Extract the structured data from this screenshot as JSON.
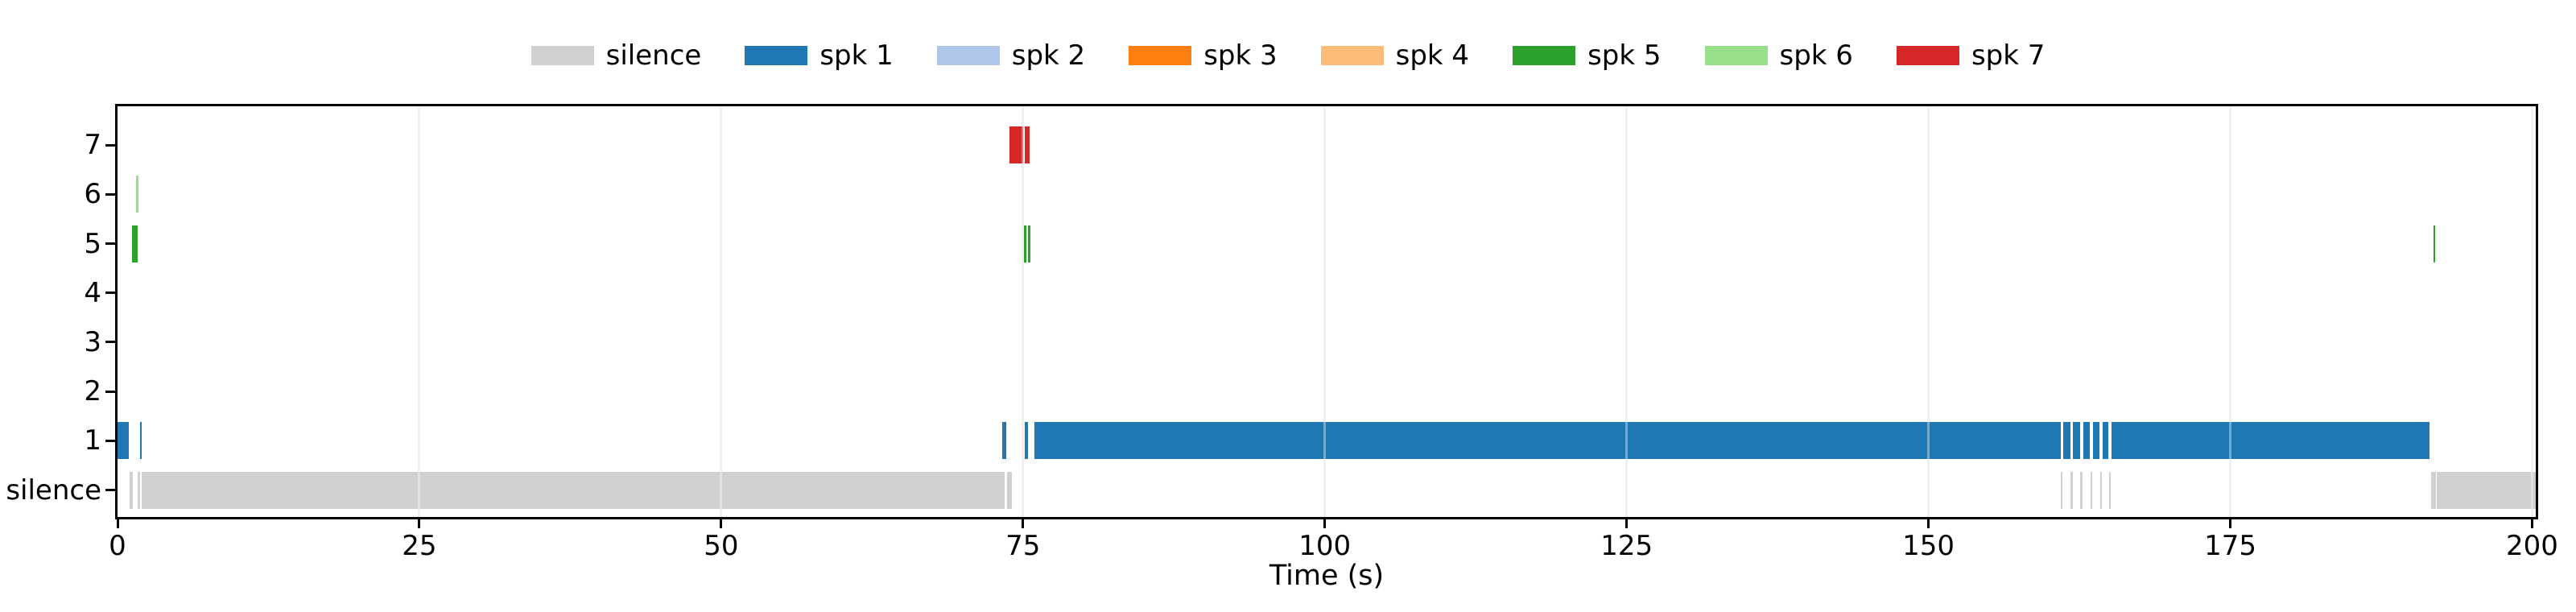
{
  "legend": {
    "items": [
      {
        "label": "silence",
        "color": "#d0d0d0"
      },
      {
        "label": "spk 1",
        "color": "#1f77b4"
      },
      {
        "label": "spk 2",
        "color": "#aec7e8"
      },
      {
        "label": "spk 3",
        "color": "#ff7f0e"
      },
      {
        "label": "spk 4",
        "color": "#ffbb78"
      },
      {
        "label": "spk 5",
        "color": "#2ca02c"
      },
      {
        "label": "spk 6",
        "color": "#98df8a"
      },
      {
        "label": "spk 7",
        "color": "#d62728"
      }
    ]
  },
  "chart_data": {
    "type": "timeline",
    "title": "",
    "xlabel": "Time (s)",
    "ylabel": "",
    "xlim": [
      0,
      200.3
    ],
    "xticks": [
      0,
      25,
      50,
      75,
      100,
      125,
      150,
      175,
      200
    ],
    "grid": {
      "axis": "x",
      "note": "faint light-gray vertical gridline at each x tick, appears as lighter stripe where it crosses bars"
    },
    "ylabels_bottom_to_top": [
      "silence",
      "1",
      "2",
      "3",
      "4",
      "5",
      "6",
      "7"
    ],
    "legend_position": "top center, horizontal row, no frame",
    "rows": [
      {
        "label": "silence",
        "color": "#d0d0d0",
        "segments": [
          [
            1.02,
            1.28
          ],
          [
            1.67,
            1.9
          ],
          [
            2.03,
            73.45
          ],
          [
            73.67,
            74.1
          ],
          [
            160.93,
            161.11
          ],
          [
            161.76,
            161.94
          ],
          [
            162.58,
            162.76
          ],
          [
            163.4,
            163.58
          ],
          [
            164.2,
            164.38
          ],
          [
            164.93,
            165.11
          ],
          [
            191.62,
            192.02
          ],
          [
            192.12,
            200.3
          ]
        ]
      },
      {
        "label": "1",
        "color": "#1f77b4",
        "segments": [
          [
            0.0,
            0.95
          ],
          [
            1.9,
            2.02
          ],
          [
            73.25,
            73.58
          ],
          [
            75.16,
            75.39
          ],
          [
            75.92,
            160.95
          ],
          [
            161.18,
            161.73
          ],
          [
            161.99,
            162.55
          ],
          [
            162.8,
            163.37
          ],
          [
            163.62,
            164.15
          ],
          [
            164.42,
            164.9
          ],
          [
            165.14,
            191.52
          ]
        ]
      },
      {
        "label": "2",
        "color": "#aec7e8",
        "segments": []
      },
      {
        "label": "3",
        "color": "#ff7f0e",
        "segments": []
      },
      {
        "label": "4",
        "color": "#ffbb78",
        "segments": []
      },
      {
        "label": "5",
        "color": "#2ca02c",
        "segments": [
          [
            1.22,
            1.64
          ],
          [
            75.09,
            75.28
          ],
          [
            75.44,
            75.62
          ],
          [
            191.82,
            191.97
          ]
        ]
      },
      {
        "label": "6",
        "color": "#98df8a",
        "segments": [
          [
            1.56,
            1.74
          ]
        ]
      },
      {
        "label": "7",
        "color": "#d62728",
        "segments": [
          [
            73.9,
            74.99
          ],
          [
            75.17,
            75.56
          ]
        ]
      }
    ]
  }
}
